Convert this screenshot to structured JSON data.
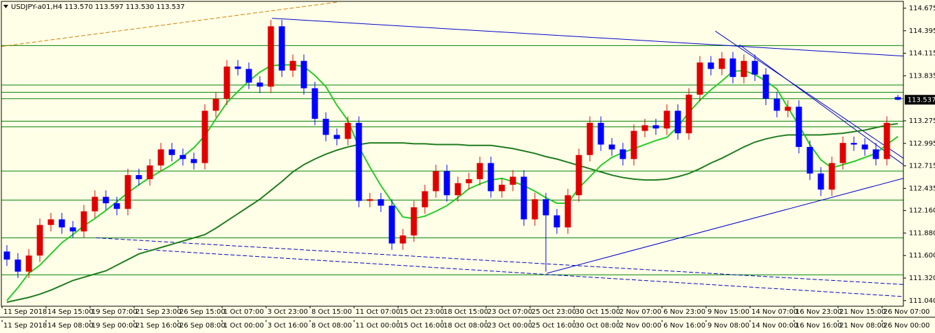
{
  "chart_data": {
    "type": "candlestick",
    "title": "USDJPY-a01,H4  113.570 113.597 113.530 113.537",
    "background": "#ffffe8",
    "bull_color": "#e00000",
    "bear_color": "#0000ff",
    "xlim": [
      -0.5,
      81.5
    ],
    "ylim": [
      110.97,
      114.76
    ],
    "yticks": [
      114.675,
      114.395,
      114.115,
      113.835,
      113.275,
      112.995,
      112.715,
      112.435,
      {
        "value": 112.16,
        "label": "112.160"
      },
      {
        "value": 111.88,
        "label": "111.880"
      },
      {
        "value": 111.6,
        "label": "111.600"
      },
      {
        "value": 111.32,
        "label": "111.320"
      },
      {
        "value": 111.04,
        "label": "111.040"
      }
    ],
    "last_price": 113.537,
    "x_labels": [
      [
        "11 Sep 2018",
        "14 Sep 15:00",
        "19 Sep 07:00",
        "21 Sep 23:00",
        "26 Sep 15:00",
        "1 Oct 07:00",
        "3 Oct 23:00",
        "8 Oct 15:00",
        "11 Oct 07:00",
        "15 Oct 23:00",
        "18 Oct 15:00",
        "23 Oct 07:00",
        "25 Oct 23:00",
        "30 Oct 15:00",
        "2 Nov 07:00",
        "6 Nov 23:00",
        "9 Nov 15:00",
        "14 Nov 07:00",
        "16 Nov 23:00",
        "21 Nov 15:00",
        "26 Nov 07:00"
      ],
      [
        "11 Sep 2018",
        "14 Sep 08:00",
        "19 Sep 00:00",
        "21 Sep 16:00",
        "26 Sep 08:00",
        "1 Oct 00:00",
        "3 Oct 16:00",
        "8 Oct 08:00",
        "11 Oct 00:00",
        "15 Oct 16:00",
        "18 Oct 08:00",
        "23 Oct 00:00",
        "25 Oct 16:00",
        "30 Oct 08:00",
        "2 Nov 00:00",
        "6 Nov 16:00",
        "9 Nov 08:00",
        "14 Nov 00:00",
        "16 Nov 16:00",
        "21 Nov 08:00",
        "26 Nov 00:00"
      ]
    ],
    "open": [
      111.65,
      111.55,
      111.4,
      111.6,
      111.98,
      112.05,
      111.95,
      111.9,
      112.15,
      112.33,
      112.25,
      112.18,
      112.6,
      112.55,
      112.72,
      112.92,
      112.85,
      112.8,
      112.75,
      113.4,
      113.55,
      113.95,
      113.92,
      113.75,
      113.7,
      114.45,
      113.9,
      114.02,
      113.68,
      113.3,
      113.1,
      113.05,
      113.25,
      112.28,
      112.3,
      112.22,
      111.75,
      111.85,
      112.2,
      112.4,
      112.65,
      112.35,
      112.5,
      112.55,
      112.75,
      112.4,
      112.48,
      112.58,
      112.05,
      112.3,
      112.1,
      111.95,
      112.35,
      112.85,
      113.25,
      112.98,
      112.92,
      112.8,
      113.15,
      113.22,
      113.18,
      113.4,
      113.12,
      113.6,
      114.0,
      113.92,
      114.05,
      113.82,
      114.02,
      113.85,
      113.55,
      113.4,
      113.45,
      112.95,
      112.62,
      112.42,
      112.75,
      113.0,
      112.98,
      112.92,
      112.8,
      113.57
    ],
    "high": [
      111.73,
      111.63,
      111.68,
      112.06,
      112.13,
      112.13,
      112.03,
      112.23,
      112.41,
      112.41,
      112.33,
      112.68,
      112.68,
      112.8,
      113.0,
      113.0,
      112.93,
      112.88,
      113.48,
      113.63,
      114.03,
      114.03,
      114.0,
      113.83,
      114.53,
      114.53,
      114.1,
      114.1,
      113.76,
      113.38,
      113.18,
      113.33,
      113.33,
      112.38,
      112.38,
      112.3,
      111.93,
      112.28,
      112.48,
      112.73,
      112.73,
      112.58,
      112.63,
      112.83,
      112.83,
      112.56,
      112.66,
      112.66,
      112.38,
      112.38,
      112.18,
      112.43,
      112.93,
      113.33,
      113.33,
      113.06,
      113.0,
      113.23,
      113.3,
      113.3,
      113.48,
      113.48,
      113.68,
      114.08,
      114.08,
      114.13,
      114.13,
      114.1,
      114.1,
      113.93,
      113.63,
      113.53,
      113.53,
      113.03,
      112.7,
      112.83,
      113.08,
      113.08,
      113.06,
      113.0,
      113.33,
      113.597
    ],
    "low": [
      111.47,
      111.32,
      111.32,
      111.52,
      111.9,
      111.87,
      111.82,
      111.82,
      112.07,
      112.17,
      112.1,
      112.1,
      112.47,
      112.47,
      112.64,
      112.77,
      112.72,
      112.67,
      112.67,
      113.32,
      113.47,
      113.84,
      113.67,
      113.62,
      113.62,
      113.82,
      113.82,
      113.6,
      113.22,
      113.02,
      112.97,
      112.97,
      112.2,
      112.2,
      112.14,
      111.67,
      111.67,
      111.77,
      112.12,
      112.32,
      112.27,
      112.27,
      112.42,
      112.47,
      112.32,
      112.32,
      112.4,
      111.97,
      111.97,
      111.4,
      111.87,
      111.87,
      112.27,
      112.77,
      112.9,
      112.84,
      112.72,
      112.72,
      113.07,
      113.1,
      113.1,
      113.04,
      113.04,
      113.52,
      113.84,
      113.84,
      113.74,
      113.74,
      113.77,
      113.47,
      113.32,
      113.32,
      112.87,
      112.54,
      112.34,
      112.34,
      112.67,
      112.9,
      112.84,
      112.72,
      112.72,
      113.53
    ],
    "close": [
      111.55,
      111.4,
      111.6,
      111.98,
      112.05,
      111.95,
      111.9,
      112.15,
      112.33,
      112.25,
      112.18,
      112.6,
      112.55,
      112.72,
      112.92,
      112.85,
      112.8,
      112.75,
      113.4,
      113.55,
      113.95,
      113.92,
      113.75,
      113.7,
      114.45,
      113.9,
      114.02,
      113.68,
      113.3,
      113.1,
      113.05,
      113.25,
      112.28,
      112.3,
      112.22,
      111.75,
      111.85,
      112.2,
      112.4,
      112.65,
      112.35,
      112.5,
      112.55,
      112.75,
      112.4,
      112.48,
      112.58,
      112.05,
      112.3,
      112.1,
      111.95,
      112.35,
      112.85,
      113.25,
      112.98,
      112.92,
      112.8,
      113.15,
      113.22,
      113.18,
      113.4,
      113.12,
      113.6,
      114.0,
      113.92,
      114.05,
      113.82,
      114.02,
      113.85,
      113.55,
      113.4,
      113.45,
      112.95,
      112.62,
      112.42,
      112.75,
      113.0,
      112.98,
      112.92,
      112.8,
      113.25,
      113.537
    ],
    "moving_averages": [
      {
        "color": "#1e7b1e",
        "width": 2,
        "values": [
          111.02,
          111.05,
          111.08,
          111.12,
          111.17,
          111.23,
          111.29,
          111.33,
          111.37,
          111.41,
          111.48,
          111.55,
          111.62,
          111.66,
          111.7,
          111.74,
          111.78,
          111.82,
          111.86,
          111.94,
          112.03,
          112.12,
          112.21,
          112.3,
          112.41,
          112.52,
          112.64,
          112.73,
          112.8,
          112.86,
          112.91,
          112.95,
          112.98,
          113.0,
          113.0,
          113.0,
          113.0,
          112.99,
          112.99,
          112.98,
          112.98,
          112.98,
          112.97,
          112.97,
          112.97,
          112.95,
          112.93,
          112.9,
          112.87,
          112.83,
          112.8,
          112.76,
          112.72,
          112.68,
          112.64,
          112.6,
          112.57,
          112.55,
          112.54,
          112.54,
          112.55,
          112.58,
          112.62,
          112.68,
          112.75,
          112.81,
          112.88,
          112.95,
          113.01,
          113.05,
          113.08,
          113.1,
          113.1,
          113.1,
          113.1,
          113.11,
          113.12,
          113.14,
          113.16,
          113.19,
          113.22,
          113.24
        ]
      },
      {
        "color": "#22cc22",
        "width": 2,
        "values": [
          111.04,
          111.2,
          111.38,
          111.48,
          111.62,
          111.76,
          111.86,
          111.97,
          112.06,
          112.16,
          112.27,
          112.38,
          112.48,
          112.57,
          112.65,
          112.73,
          112.83,
          112.94,
          113.09,
          113.3,
          113.5,
          113.64,
          113.77,
          113.88,
          113.96,
          113.97,
          113.97,
          113.95,
          113.84,
          113.7,
          113.47,
          113.28,
          112.95,
          112.7,
          112.47,
          112.27,
          112.08,
          112.06,
          112.09,
          112.15,
          112.22,
          112.32,
          112.43,
          112.49,
          112.54,
          112.56,
          112.52,
          112.47,
          112.4,
          112.32,
          112.25,
          112.25,
          112.44,
          112.58,
          112.72,
          112.82,
          112.88,
          112.93,
          112.98,
          113.03,
          113.07,
          113.2,
          113.38,
          113.53,
          113.66,
          113.77,
          113.89,
          113.9,
          113.85,
          113.77,
          113.67,
          113.44,
          113.22,
          112.98,
          112.79,
          112.69,
          112.73,
          112.77,
          112.82,
          112.87,
          112.98,
          113.08
        ]
      }
    ],
    "levels": {
      "color": "#008000",
      "values": [
        114.21,
        113.72,
        113.63,
        113.55,
        113.27,
        113.2,
        112.65,
        112.29,
        111.82,
        111.36
      ]
    },
    "trendlines": [
      {
        "color": "#d08000",
        "dash": true,
        "x": [
          -0.5,
          30
        ],
        "y": [
          114.2,
          114.75
        ]
      },
      {
        "color": "#0000c8",
        "dash": false,
        "x": [
          24.1,
          81.5
        ],
        "y": [
          114.55,
          114.08
        ]
      },
      {
        "color": "#0000c8",
        "dash": false,
        "x": [
          64.4,
          81.5
        ],
        "y": [
          114.39,
          112.81
        ]
      },
      {
        "color": "#0000c8",
        "dash": false,
        "x": [
          66.6,
          81.5
        ],
        "y": [
          114.22,
          112.73
        ]
      },
      {
        "color": "#0000c8",
        "dash": false,
        "x": [
          49.1,
          81.5
        ],
        "y": [
          111.38,
          112.56
        ]
      },
      {
        "color": "#0000c8",
        "dash": true,
        "x": [
          8.1,
          81.5
        ],
        "y": [
          111.82,
          111.24
        ]
      },
      {
        "color": "#0000c8",
        "dash": true,
        "x": [
          11.9,
          81.5
        ],
        "y": [
          111.68,
          111.09
        ]
      }
    ]
  }
}
